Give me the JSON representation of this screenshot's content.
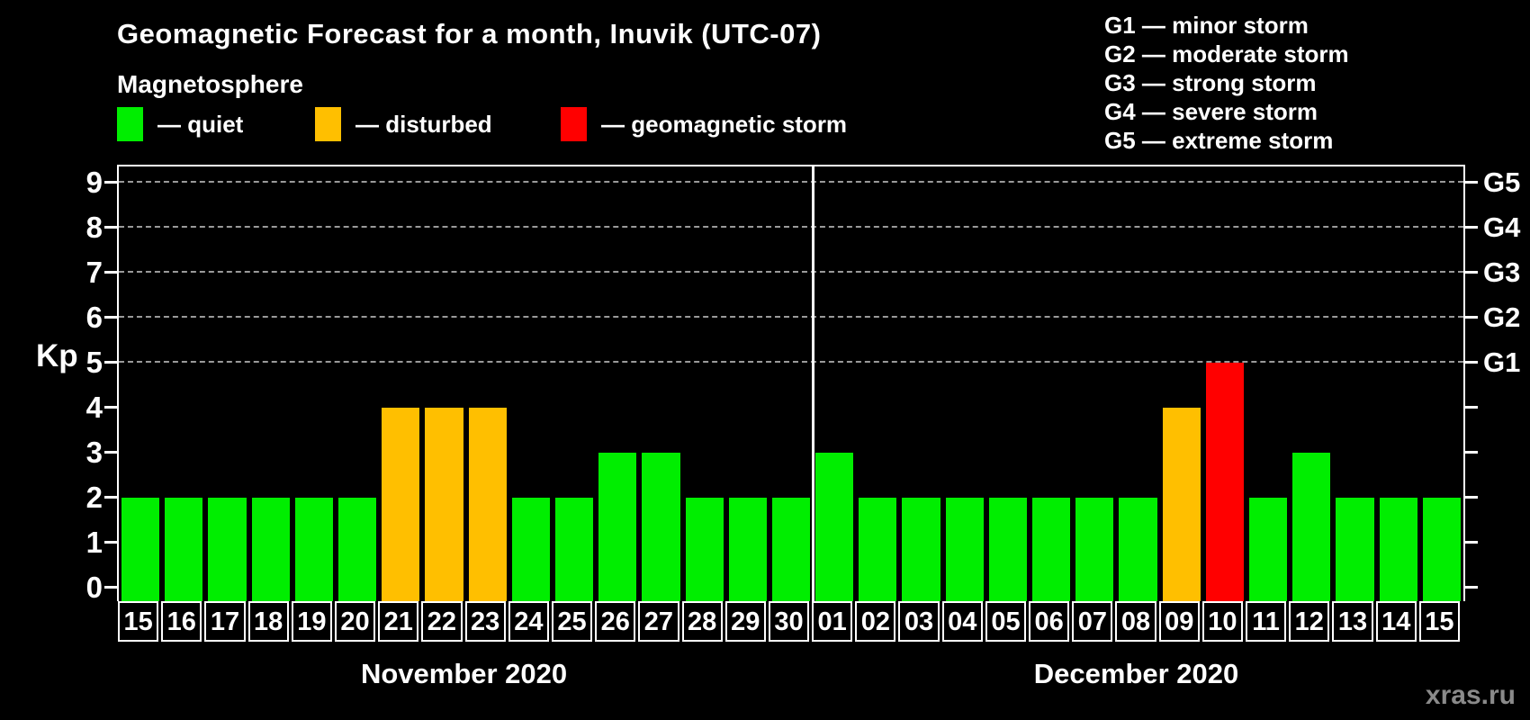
{
  "title": "Geomagnetic Forecast for a month, Inuvik (UTC-07)",
  "subtitle": "Magnetosphere",
  "watermark": "xras.ru",
  "g_legend": {
    "lines": [
      "G1 — minor storm",
      "G2 — moderate storm",
      "G3 — strong storm",
      "G4 — severe storm",
      "G5 — extreme storm"
    ]
  },
  "chart_data": {
    "type": "bar",
    "title": "Geomagnetic Forecast for a month, Inuvik (UTC-07)",
    "ylabel": "Kp",
    "ylim": [
      0,
      9.4
    ],
    "yticks": [
      0,
      1,
      2,
      3,
      4,
      5,
      6,
      7,
      8,
      9
    ],
    "gridlines_at": [
      5,
      6,
      7,
      8,
      9
    ],
    "grid": "dashed horizontal at G-storm levels only",
    "right_axis_labels": [
      {
        "label": "G1",
        "kp": 5
      },
      {
        "label": "G2",
        "kp": 6
      },
      {
        "label": "G3",
        "kp": 7
      },
      {
        "label": "G4",
        "kp": 8
      },
      {
        "label": "G5",
        "kp": 9
      }
    ],
    "legend": [
      {
        "status": "quiet",
        "label": "— quiet",
        "color": "#00ee00"
      },
      {
        "status": "disturbed",
        "label": "— disturbed",
        "color": "#ffbf00"
      },
      {
        "status": "storm",
        "label": "— geomagnetic storm",
        "color": "#ff0000"
      }
    ],
    "series": [
      {
        "month": "November 2020",
        "points": [
          {
            "day": "15",
            "kp": 2,
            "status": "quiet"
          },
          {
            "day": "16",
            "kp": 2,
            "status": "quiet"
          },
          {
            "day": "17",
            "kp": 2,
            "status": "quiet"
          },
          {
            "day": "18",
            "kp": 2,
            "status": "quiet"
          },
          {
            "day": "19",
            "kp": 2,
            "status": "quiet"
          },
          {
            "day": "20",
            "kp": 2,
            "status": "quiet"
          },
          {
            "day": "21",
            "kp": 4,
            "status": "disturbed"
          },
          {
            "day": "22",
            "kp": 4,
            "status": "disturbed"
          },
          {
            "day": "23",
            "kp": 4,
            "status": "disturbed"
          },
          {
            "day": "24",
            "kp": 2,
            "status": "quiet"
          },
          {
            "day": "25",
            "kp": 2,
            "status": "quiet"
          },
          {
            "day": "26",
            "kp": 3,
            "status": "quiet"
          },
          {
            "day": "27",
            "kp": 3,
            "status": "quiet"
          },
          {
            "day": "28",
            "kp": 2,
            "status": "quiet"
          },
          {
            "day": "29",
            "kp": 2,
            "status": "quiet"
          },
          {
            "day": "30",
            "kp": 2,
            "status": "quiet"
          }
        ]
      },
      {
        "month": "December 2020",
        "points": [
          {
            "day": "01",
            "kp": 3,
            "status": "quiet"
          },
          {
            "day": "02",
            "kp": 2,
            "status": "quiet"
          },
          {
            "day": "03",
            "kp": 2,
            "status": "quiet"
          },
          {
            "day": "04",
            "kp": 2,
            "status": "quiet"
          },
          {
            "day": "05",
            "kp": 2,
            "status": "quiet"
          },
          {
            "day": "06",
            "kp": 2,
            "status": "quiet"
          },
          {
            "day": "07",
            "kp": 2,
            "status": "quiet"
          },
          {
            "day": "08",
            "kp": 2,
            "status": "quiet"
          },
          {
            "day": "09",
            "kp": 4,
            "status": "disturbed"
          },
          {
            "day": "10",
            "kp": 5,
            "status": "storm"
          },
          {
            "day": "11",
            "kp": 2,
            "status": "quiet"
          },
          {
            "day": "12",
            "kp": 3,
            "status": "quiet"
          },
          {
            "day": "13",
            "kp": 2,
            "status": "quiet"
          },
          {
            "day": "14",
            "kp": 2,
            "status": "quiet"
          },
          {
            "day": "15",
            "kp": 2,
            "status": "quiet"
          }
        ]
      }
    ]
  }
}
